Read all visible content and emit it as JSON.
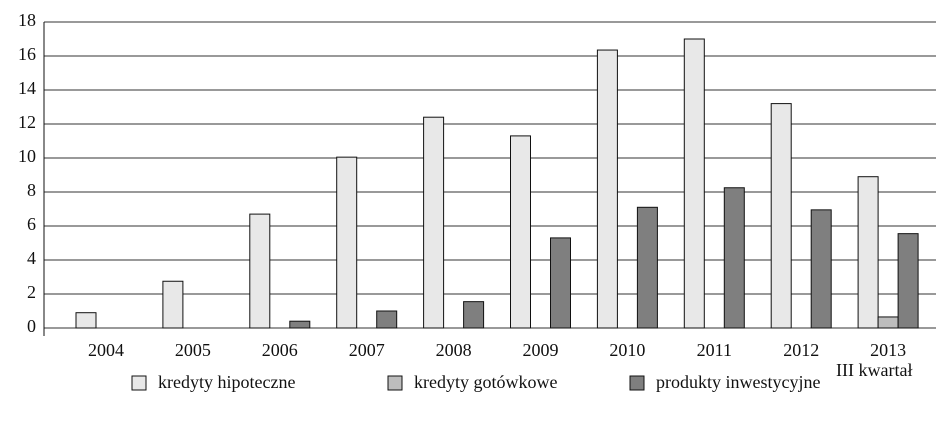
{
  "chart_data": {
    "type": "bar",
    "categories": [
      "2004",
      "2005",
      "2006",
      "2007",
      "2008",
      "2009",
      "2010",
      "2011",
      "2012",
      "2013"
    ],
    "annotation": "III kwartał",
    "series": [
      {
        "name": "kredyty hipoteczne",
        "color": "#e8e8e8",
        "values": [
          0.9,
          2.75,
          6.7,
          10.05,
          12.4,
          11.3,
          16.35,
          17.0,
          13.2,
          8.9
        ]
      },
      {
        "name": "kredyty gotówkowe",
        "color": "#bdbdbd",
        "values": [
          null,
          null,
          null,
          null,
          null,
          null,
          null,
          null,
          null,
          0.65
        ]
      },
      {
        "name": "produkty inwestycyjne",
        "color": "#7f7f7f",
        "values": [
          null,
          null,
          0.4,
          1.0,
          1.55,
          5.3,
          7.1,
          8.25,
          6.95,
          5.55
        ]
      }
    ],
    "ylim": [
      0,
      18
    ],
    "yticks": [
      0,
      2,
      4,
      6,
      8,
      10,
      12,
      14,
      16,
      18
    ],
    "grid": true,
    "legend": "bottom"
  }
}
